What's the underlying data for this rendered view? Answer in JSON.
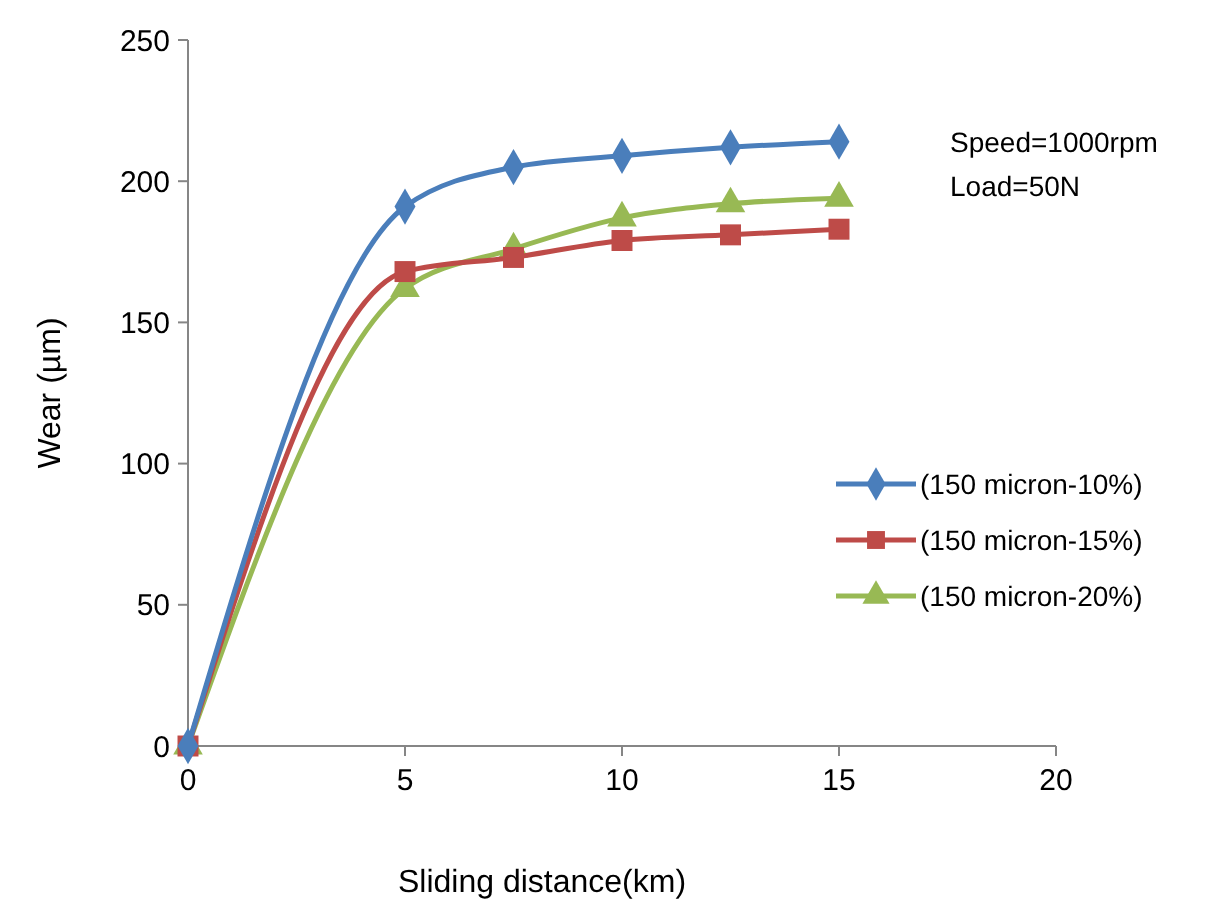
{
  "chart_data": {
    "type": "line",
    "xlabel": "Sliding distance(km)",
    "ylabel": "Wear (µm)",
    "x": [
      0,
      5,
      7.5,
      10,
      12.5,
      15
    ],
    "series": [
      {
        "name": "(150 micron-10%)",
        "color": "#4a7ebb",
        "marker": "diamond",
        "values": [
          0,
          191,
          205,
          209,
          212,
          214
        ]
      },
      {
        "name": "(150 micron-15%)",
        "color": "#be4b48",
        "marker": "square",
        "values": [
          0,
          168,
          173,
          179,
          181,
          183
        ]
      },
      {
        "name": "(150 micron-20%)",
        "color": "#98b954",
        "marker": "triangle",
        "values": [
          0,
          162,
          176,
          187,
          192,
          194
        ]
      }
    ],
    "xlim": [
      0,
      20
    ],
    "xticks": [
      0,
      5,
      10,
      15,
      20
    ],
    "ylim": [
      0,
      250
    ],
    "yticks": [
      0,
      50,
      100,
      150,
      200,
      250
    ],
    "annotations": [
      "Speed=1000rpm",
      "Load=50N"
    ],
    "legend": "right",
    "grid": false,
    "line_style": "solid"
  }
}
